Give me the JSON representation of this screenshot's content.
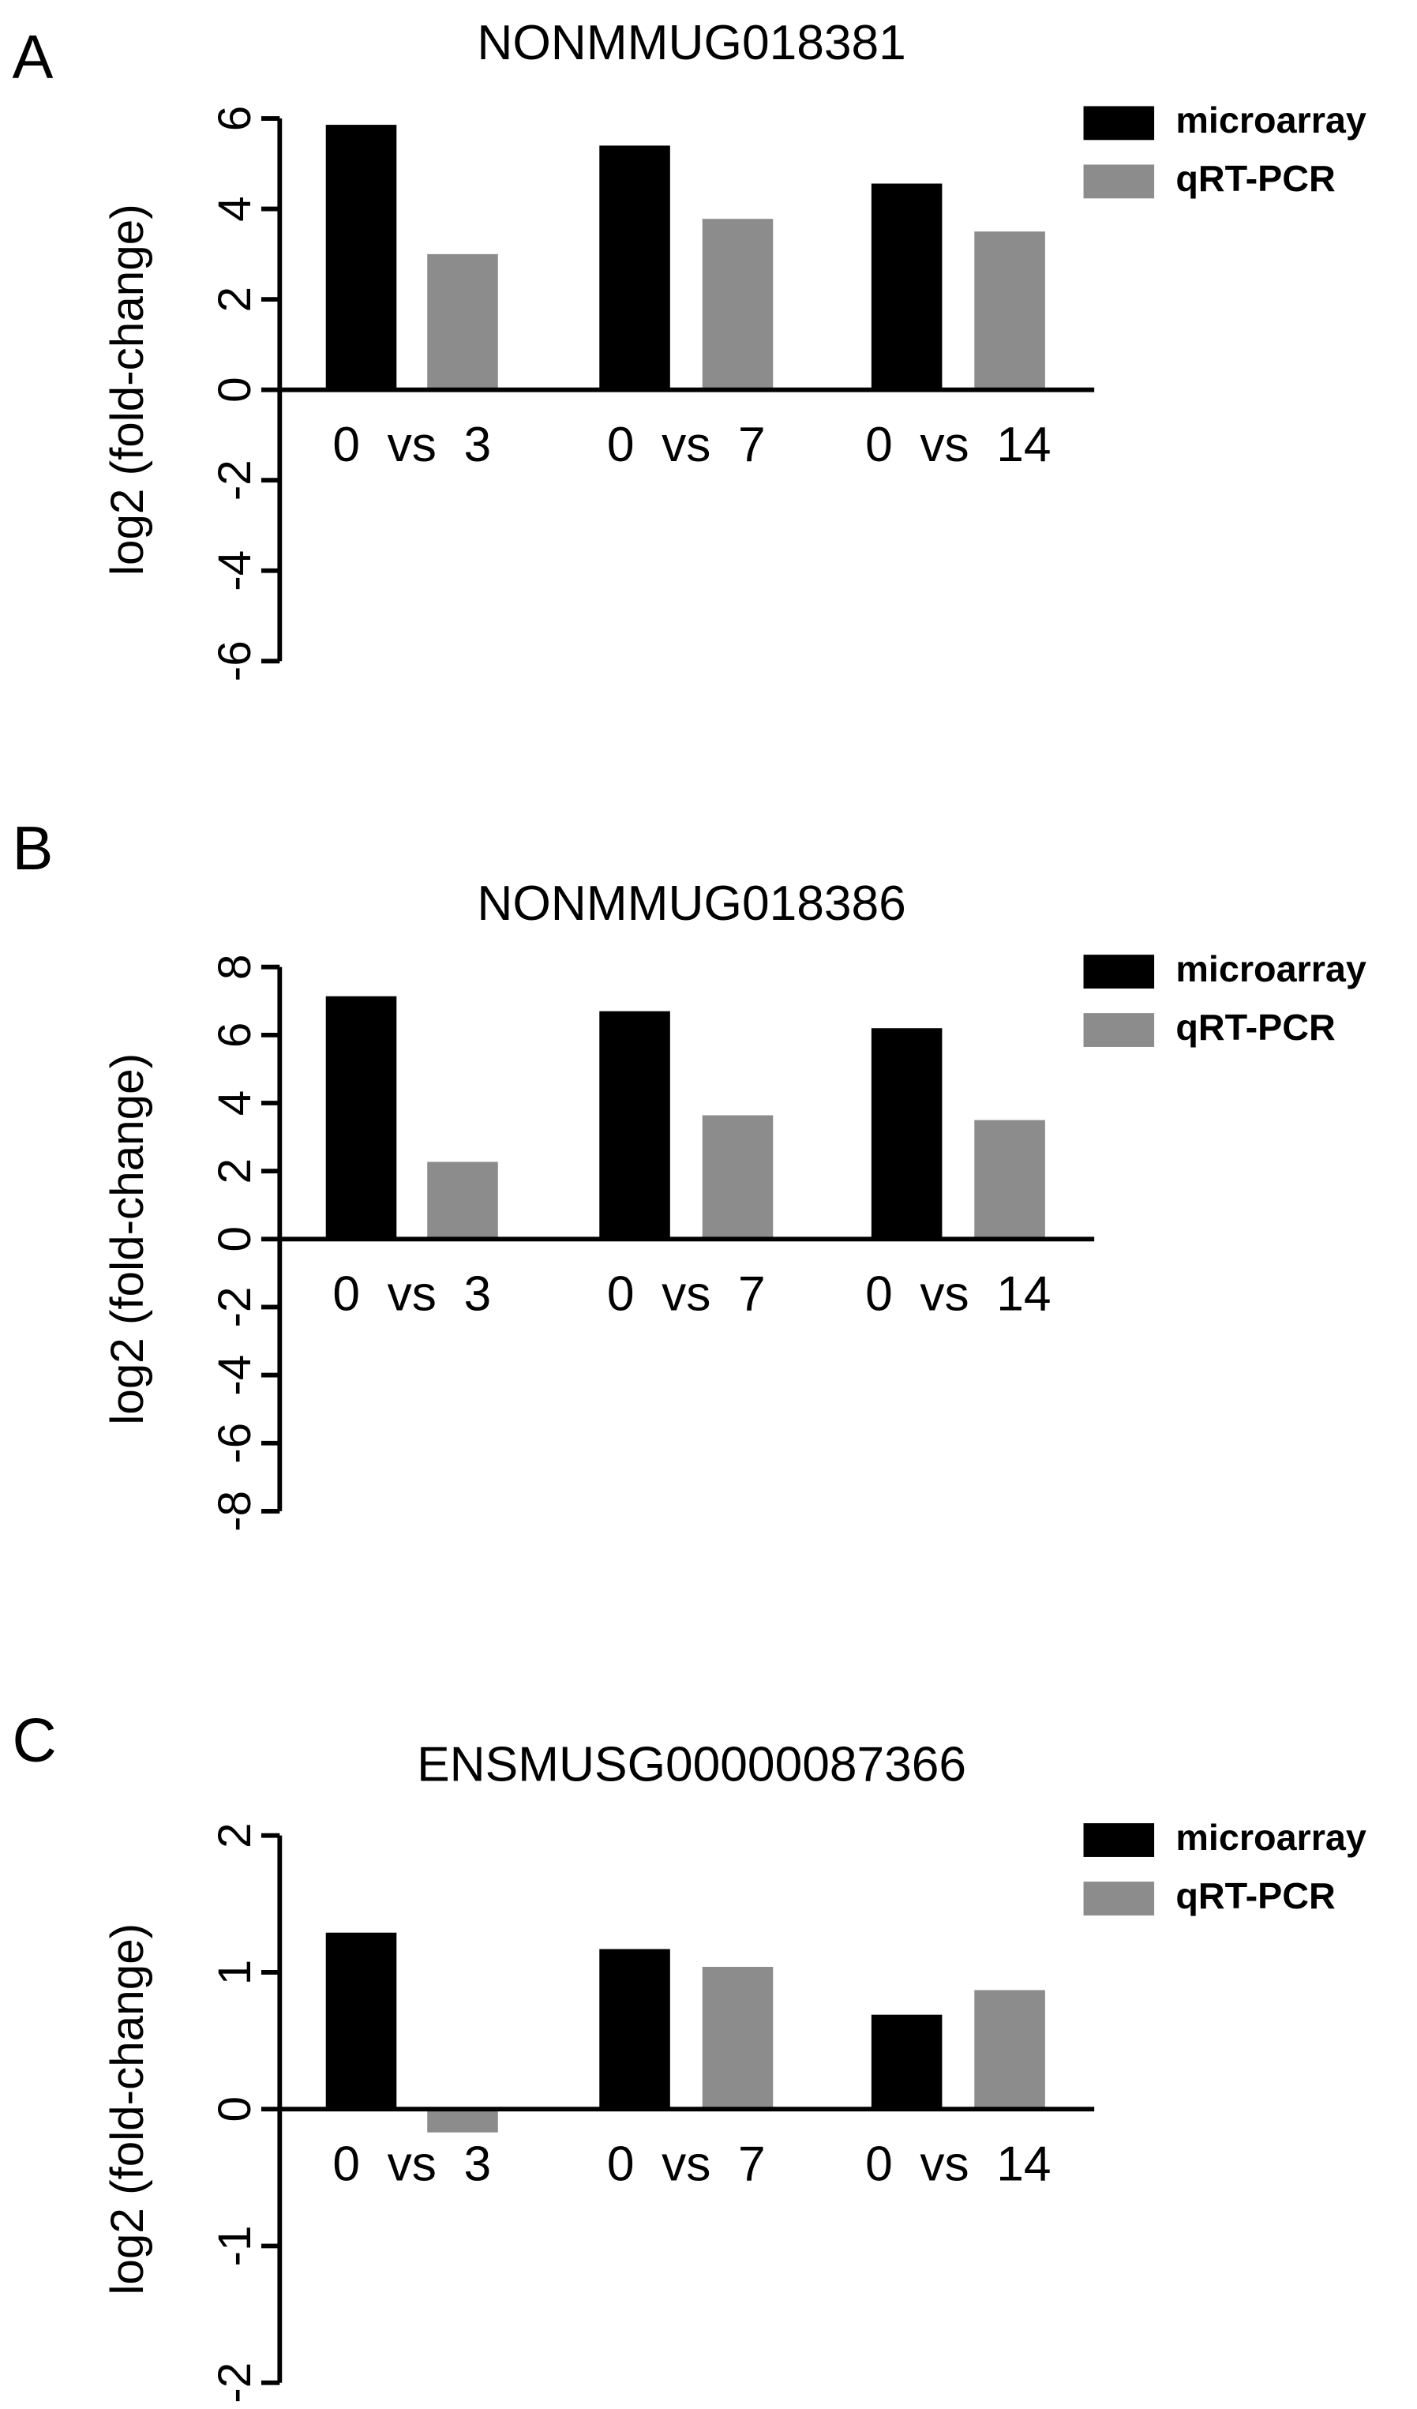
{
  "chart_data": [
    {
      "type": "bar",
      "panel_label": "A",
      "title": "NONMMUG018381",
      "y_label": "log2  (fold-change)",
      "categories": [
        "0  vs  3",
        "0  vs  7",
        "0  vs  14"
      ],
      "series": [
        {
          "name": "microarray",
          "color": "#000000",
          "values": [
            5.86,
            5.4,
            4.56
          ]
        },
        {
          "name": "qRT-PCR",
          "color": "#8c8c8c",
          "values": [
            3.0,
            3.78,
            3.5
          ]
        }
      ],
      "ylim": [
        -6,
        6
      ],
      "yticks": [
        -6,
        -4,
        -2,
        0,
        2,
        4,
        6
      ]
    },
    {
      "type": "bar",
      "panel_label": "B",
      "title": "NONMMUG018386",
      "y_label": "log2  (fold-change)",
      "categories": [
        "0  vs  3",
        "0  vs  7",
        "0  vs  14"
      ],
      "series": [
        {
          "name": "microarray",
          "color": "#000000",
          "values": [
            7.14,
            6.7,
            6.2
          ]
        },
        {
          "name": "qRT-PCR",
          "color": "#8c8c8c",
          "values": [
            2.27,
            3.64,
            3.5
          ]
        }
      ],
      "ylim": [
        -8,
        8
      ],
      "yticks": [
        -8,
        -6,
        -4,
        -2,
        0,
        2,
        4,
        6,
        8
      ]
    },
    {
      "type": "bar",
      "panel_label": "C",
      "title": "ENSMUSG00000087366",
      "y_label": "log2  (fold-change)",
      "categories": [
        "0  vs  3",
        "0  vs  7",
        "0  vs  14"
      ],
      "series": [
        {
          "name": "microarray",
          "color": "#000000",
          "values": [
            1.29,
            1.17,
            0.69
          ]
        },
        {
          "name": "qRT-PCR",
          "color": "#8c8c8c",
          "values": [
            -0.17,
            1.04,
            0.87
          ]
        }
      ],
      "ylim": [
        -2,
        2
      ],
      "yticks": [
        -2,
        -1,
        0,
        1,
        2
      ]
    }
  ]
}
